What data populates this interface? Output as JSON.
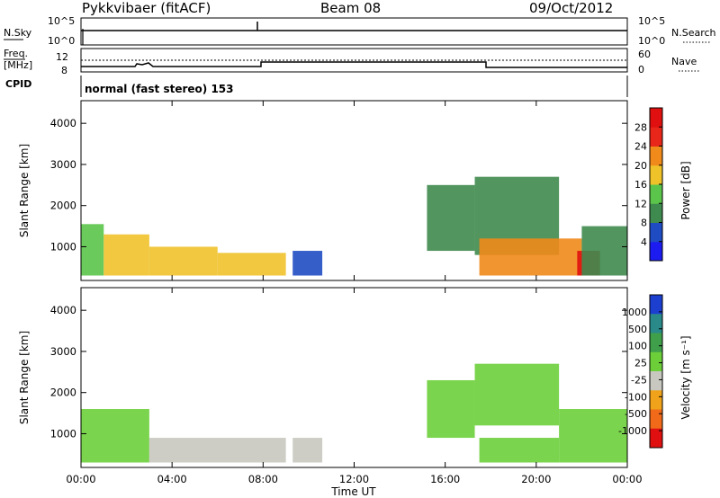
{
  "header": {
    "station": "Pykkvibaer (fitACF)",
    "beam": "Beam 08",
    "date": "09/Oct/2012"
  },
  "strip_labels": {
    "nsky": "N.Sky",
    "nsearch": "N.Search",
    "freq_line1": "Freq.",
    "freq_line2": "[MHz]",
    "nave": "Nave",
    "cpid": "CPID",
    "left_top_ticks": [
      "10^5",
      "10^0"
    ],
    "right_top_ticks": [
      "10^5",
      "10^0"
    ],
    "left_freq_ticks": [
      "12",
      "8"
    ],
    "right_nave_ticks": [
      "60",
      "0"
    ],
    "program": "normal (fast stereo) 153"
  },
  "axes": {
    "ylabel": "Slant Range [km]",
    "xlabel": "Time UT",
    "x_ticks": [
      "00:00",
      "04:00",
      "08:00",
      "12:00",
      "16:00",
      "20:00",
      "00:00"
    ],
    "y_ticks": [
      "1000",
      "2000",
      "3000",
      "4000"
    ]
  },
  "colorbars": {
    "power": {
      "label": "Power [dB]",
      "ticks": [
        "4",
        "8",
        "12",
        "16",
        "20",
        "24",
        "28"
      ],
      "colors": [
        "#1c1cf0",
        "#1f4cc3",
        "#3f8a4e",
        "#5bc44a",
        "#f0c22a",
        "#f08a1a",
        "#e8261a",
        "#e01010"
      ]
    },
    "velocity": {
      "label": "Velocity [m s⁻¹]",
      "ticks": [
        "1000",
        "500",
        "100",
        "25",
        "-25",
        "-100",
        "-500",
        "-1000"
      ],
      "colors": [
        "#1c3fd0",
        "#2a8a8a",
        "#3f9f4a",
        "#6ccf3a",
        "#c8c8c0",
        "#f0a21a",
        "#f06a1a",
        "#e01010"
      ]
    }
  },
  "chart_data": [
    {
      "type": "heatmap",
      "name": "Power",
      "xlabel": "Time UT",
      "ylabel": "Slant Range [km]",
      "x_range_hours": [
        0,
        24
      ],
      "y_range_km": [
        180,
        4550
      ],
      "colorbar_label": "Power [dB]",
      "colorbar_range": [
        0,
        32
      ],
      "regions": [
        {
          "t": [
            0.0,
            1.0
          ],
          "r": [
            300,
            1550
          ],
          "v": 15
        },
        {
          "t": [
            1.0,
            3.0
          ],
          "r": [
            300,
            1300
          ],
          "v": 16
        },
        {
          "t": [
            3.0,
            6.0
          ],
          "r": [
            300,
            1000
          ],
          "v": 17
        },
        {
          "t": [
            6.0,
            9.0
          ],
          "r": [
            300,
            850
          ],
          "v": 16
        },
        {
          "t": [
            9.3,
            10.6
          ],
          "r": [
            300,
            900
          ],
          "v": 7
        },
        {
          "t": [
            15.2,
            17.3
          ],
          "r": [
            900,
            2500
          ],
          "v": 8
        },
        {
          "t": [
            17.3,
            21.0
          ],
          "r": [
            800,
            2700
          ],
          "v": 9
        },
        {
          "t": [
            17.5,
            22.0
          ],
          "r": [
            300,
            1200
          ],
          "v": 22
        },
        {
          "t": [
            21.8,
            22.8
          ],
          "r": [
            300,
            900
          ],
          "v": 30
        },
        {
          "t": [
            22.0,
            24.0
          ],
          "r": [
            300,
            1500
          ],
          "v": 10
        }
      ]
    },
    {
      "type": "heatmap",
      "name": "Velocity",
      "xlabel": "Time UT",
      "ylabel": "Slant Range [km]",
      "x_range_hours": [
        0,
        24
      ],
      "y_range_km": [
        180,
        4550
      ],
      "colorbar_label": "Velocity [m s⁻¹]",
      "colorbar_range": [
        -1200,
        1200
      ],
      "regions": [
        {
          "t": [
            0.0,
            3.0
          ],
          "r": [
            300,
            1600
          ],
          "v": 0
        },
        {
          "t": [
            3.0,
            9.0
          ],
          "r": [
            300,
            900
          ],
          "v": -150
        },
        {
          "t": [
            9.3,
            10.6
          ],
          "r": [
            300,
            900
          ],
          "v": -200
        },
        {
          "t": [
            15.2,
            17.3
          ],
          "r": [
            900,
            2300
          ],
          "v": 20
        },
        {
          "t": [
            17.3,
            21.0
          ],
          "r": [
            1200,
            2700
          ],
          "v": 0
        },
        {
          "t": [
            17.5,
            21.0
          ],
          "r": [
            300,
            900
          ],
          "v": 90
        },
        {
          "t": [
            21.0,
            24.0
          ],
          "r": [
            300,
            1600
          ],
          "v": 0
        }
      ]
    }
  ]
}
